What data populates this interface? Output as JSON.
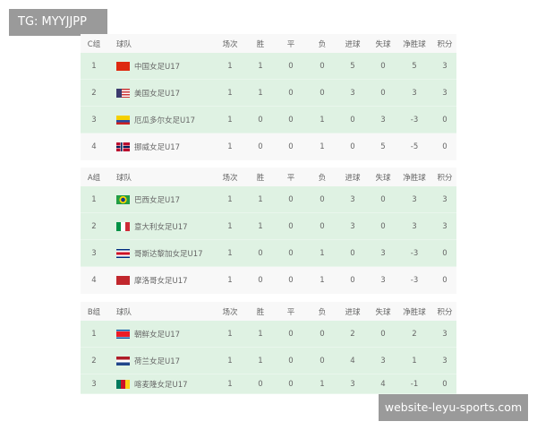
{
  "watermarks": {
    "top": "TG: MYYJJPP",
    "bottom": "website-leyu-sports.com"
  },
  "columns": [
    "球队",
    "场次",
    "胜",
    "平",
    "负",
    "进球",
    "失球",
    "净胜球",
    "积分"
  ],
  "groups": [
    {
      "name": "C组",
      "rows": [
        {
          "rank": "1",
          "team": "中国女足U17",
          "flag": "china-flag",
          "stats": [
            "1",
            "1",
            "0",
            "0",
            "5",
            "0",
            "5",
            "3"
          ]
        },
        {
          "rank": "2",
          "team": "美国女足U17",
          "flag": "usa-flag",
          "stats": [
            "1",
            "1",
            "0",
            "0",
            "3",
            "0",
            "3",
            "3"
          ]
        },
        {
          "rank": "3",
          "team": "厄瓜多尔女足U17",
          "flag": "ecuador-flag",
          "stats": [
            "1",
            "0",
            "0",
            "1",
            "0",
            "3",
            "-3",
            "0"
          ]
        },
        {
          "rank": "4",
          "team": "挪威女足U17",
          "flag": "norway-flag",
          "stats": [
            "1",
            "0",
            "0",
            "1",
            "0",
            "5",
            "-5",
            "0"
          ]
        }
      ]
    },
    {
      "name": "A组",
      "rows": [
        {
          "rank": "1",
          "team": "巴西女足U17",
          "flag": "brazil-flag",
          "stats": [
            "1",
            "1",
            "0",
            "0",
            "3",
            "0",
            "3",
            "3"
          ]
        },
        {
          "rank": "2",
          "team": "意大利女足U17",
          "flag": "italy-flag",
          "stats": [
            "1",
            "1",
            "0",
            "0",
            "3",
            "0",
            "3",
            "3"
          ]
        },
        {
          "rank": "3",
          "team": "哥斯达黎加女足U17",
          "flag": "costa-rica-flag",
          "stats": [
            "1",
            "0",
            "0",
            "1",
            "0",
            "3",
            "-3",
            "0"
          ]
        },
        {
          "rank": "4",
          "team": "摩洛哥女足U17",
          "flag": "morocco-flag",
          "stats": [
            "1",
            "0",
            "0",
            "1",
            "0",
            "3",
            "-3",
            "0"
          ]
        }
      ]
    },
    {
      "name": "B组",
      "rows": [
        {
          "rank": "1",
          "team": "朝鲜女足U17",
          "flag": "north-korea-flag",
          "stats": [
            "1",
            "1",
            "0",
            "0",
            "2",
            "0",
            "2",
            "3"
          ]
        },
        {
          "rank": "2",
          "team": "荷兰女足U17",
          "flag": "netherlands-flag",
          "stats": [
            "1",
            "1",
            "0",
            "0",
            "4",
            "3",
            "1",
            "3"
          ]
        },
        {
          "rank": "3",
          "team": "喀麦隆女足U17",
          "flag": "cameroon-flag",
          "stats": [
            "1",
            "0",
            "0",
            "1",
            "3",
            "4",
            "-1",
            "0"
          ]
        }
      ]
    }
  ]
}
